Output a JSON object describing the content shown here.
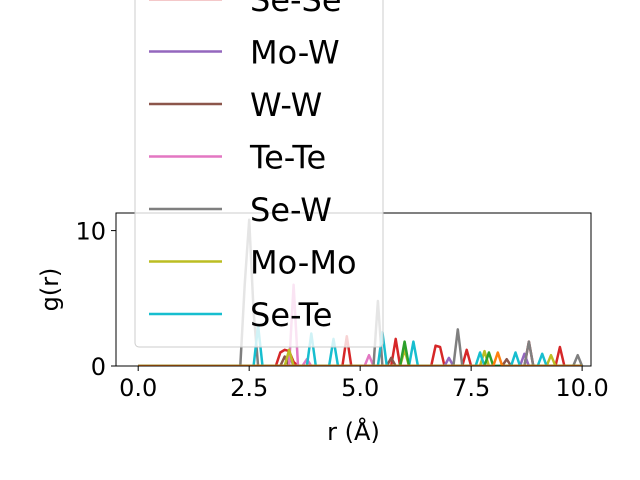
{
  "chart_data": {
    "type": "line",
    "title": "",
    "xlabel": "r (Å)",
    "ylabel": "g(r)",
    "xlim": [
      -0.5,
      10.2
    ],
    "ylim": [
      0,
      11.3
    ],
    "xticks": [
      0.0,
      2.5,
      5.0,
      7.5,
      10.0
    ],
    "xtick_labels": [
      "0.0",
      "2.5",
      "5.0",
      "7.5",
      "10.0"
    ],
    "yticks": [
      0,
      10
    ],
    "ytick_labels": [
      "0",
      "10"
    ],
    "grid": false,
    "legend_position": "upper-left (extends above plot)",
    "series": [
      {
        "name": "Se-Se",
        "color": "#d62728",
        "x": [
          0,
          3.1,
          3.2,
          3.3,
          3.4,
          3.5,
          3.6,
          4.6,
          4.7,
          4.8,
          5.7,
          5.8,
          5.9,
          6.6,
          6.7,
          6.8,
          6.9,
          7.3,
          7.4,
          7.5,
          8.7,
          8.8,
          8.9,
          9.4,
          9.5,
          9.6,
          10
        ],
        "y": [
          0,
          0,
          1.0,
          1.2,
          1.1,
          0.3,
          0,
          0,
          2.2,
          0,
          0,
          2.0,
          0,
          0,
          1.5,
          1.4,
          0,
          0,
          1.2,
          0,
          0,
          1.8,
          0,
          0,
          1.4,
          0,
          0
        ]
      },
      {
        "name": "Mo-W",
        "color": "#9467bd",
        "x": [
          0,
          3.3,
          3.4,
          3.5,
          6.9,
          7.0,
          7.1,
          8.6,
          8.7,
          8.8,
          10
        ],
        "y": [
          0,
          0,
          0.8,
          0,
          0,
          0.6,
          0,
          0,
          0.9,
          0,
          0
        ]
      },
      {
        "name": "W-W",
        "color": "#8c564b",
        "x": [
          0,
          3.2,
          3.3,
          3.4,
          5.6,
          5.7,
          5.8,
          8.2,
          8.3,
          8.4,
          10
        ],
        "y": [
          0,
          0,
          0.7,
          0,
          0,
          0.6,
          0,
          0,
          0.5,
          0,
          0
        ]
      },
      {
        "name": "Te-Te",
        "color": "#e377c2",
        "x": [
          0,
          3.4,
          3.5,
          3.6,
          3.7,
          3.8,
          3.9,
          5.1,
          5.2,
          5.3,
          10
        ],
        "y": [
          0,
          0,
          6.0,
          0,
          0,
          0.5,
          0,
          0,
          0.8,
          0,
          0
        ]
      },
      {
        "name": "Se-W",
        "color": "#7f7f7f",
        "x": [
          0,
          2.3,
          2.4,
          2.5,
          2.6,
          2.7,
          5.3,
          5.4,
          5.5,
          7.1,
          7.2,
          7.3,
          8.7,
          8.8,
          8.9,
          9.8,
          9.9,
          10
        ],
        "y": [
          0,
          0,
          6.0,
          10.8,
          4.0,
          0,
          0,
          4.8,
          0,
          0,
          2.7,
          0,
          0,
          1.8,
          0,
          0,
          0.8,
          0
        ]
      },
      {
        "name": "Mo-Mo",
        "color": "#bcbd22",
        "x": [
          0,
          3.3,
          3.4,
          3.5,
          5.9,
          6.0,
          6.1,
          7.7,
          7.8,
          7.9,
          9.2,
          9.3,
          9.4,
          10
        ],
        "y": [
          0,
          0,
          1.2,
          0,
          0,
          1.2,
          0,
          0,
          1.1,
          0,
          0,
          0.8,
          0,
          0
        ]
      },
      {
        "name": "Se-Te",
        "color": "#17becf",
        "x": [
          0,
          2.6,
          2.7,
          2.8,
          3.8,
          3.9,
          4.0,
          4.3,
          4.4,
          4.5,
          5.4,
          5.5,
          5.6,
          6.1,
          6.2,
          6.3,
          7.6,
          7.7,
          7.8,
          8.4,
          8.5,
          8.6,
          9.0,
          9.1,
          9.2,
          10
        ],
        "y": [
          0,
          0,
          3.0,
          0,
          0,
          2.4,
          0,
          0,
          2.0,
          0,
          0,
          2.5,
          0,
          0,
          1.8,
          0,
          0,
          1.0,
          0,
          0,
          1.0,
          0,
          0,
          0.9,
          0,
          0
        ]
      },
      {
        "name": "",
        "color": "#2ca02c",
        "x": [
          0,
          5.9,
          6.0,
          6.1,
          7.8,
          7.9,
          8.0,
          10
        ],
        "y": [
          0,
          0,
          1.8,
          0,
          0,
          1.0,
          0,
          0
        ]
      },
      {
        "name": "",
        "color": "#ff7f0e",
        "x": [
          0,
          8.0,
          8.1,
          8.2,
          10
        ],
        "y": [
          0,
          0,
          1.0,
          0,
          0
        ]
      }
    ]
  }
}
